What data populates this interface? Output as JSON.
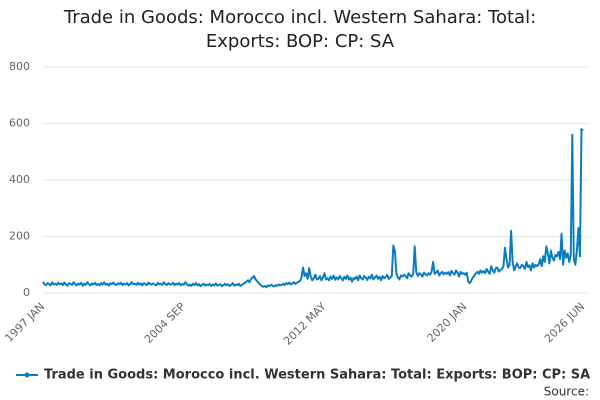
{
  "chart_data": {
    "type": "line",
    "title": "Trade in Goods: Morocco incl. Western Sahara: Total: Exports: BOP: CP: SA",
    "source_label": "Source:",
    "categories": [
      "1997 JAN",
      null,
      null,
      null,
      null,
      null,
      null,
      null,
      null,
      null,
      null,
      null,
      null,
      null,
      null,
      null,
      null,
      null,
      null,
      null,
      null,
      null,
      null,
      null,
      null,
      null,
      null,
      null,
      null,
      null,
      null,
      null,
      null,
      null,
      null,
      null,
      null,
      null,
      null,
      null,
      null,
      null,
      null,
      null,
      null,
      null,
      null,
      null,
      null,
      null,
      null,
      null,
      null,
      null,
      null,
      null,
      null,
      null,
      null,
      null,
      null,
      null,
      null,
      null,
      null,
      null,
      null,
      null,
      null,
      null,
      null,
      null,
      null,
      null,
      null,
      null,
      null,
      null,
      null,
      null,
      null,
      null,
      null,
      null,
      null,
      null,
      null,
      null,
      null,
      null,
      null,
      null,
      "2004 SEP",
      null,
      null,
      null,
      null,
      null,
      null,
      null,
      null,
      null,
      null,
      null,
      null,
      null,
      null,
      null,
      null,
      null,
      null,
      null,
      null,
      null,
      null,
      null,
      null,
      null,
      null,
      null,
      null,
      null,
      null,
      null,
      null,
      null,
      null,
      null,
      null,
      null,
      null,
      null,
      null,
      null,
      null,
      null,
      null,
      null,
      null,
      null,
      null,
      null,
      null,
      null,
      null,
      null,
      null,
      null,
      null,
      null,
      null,
      null,
      null,
      null,
      null,
      null,
      null,
      null,
      null,
      null,
      null,
      null,
      null,
      null,
      null,
      null,
      null,
      null,
      null,
      null,
      null,
      null,
      null,
      null,
      null,
      null,
      null,
      null,
      null,
      null,
      null,
      null,
      null,
      null,
      "2012 MAY",
      null,
      null,
      null,
      null,
      null,
      null,
      null,
      null,
      null,
      null,
      null,
      null,
      null,
      null,
      null,
      null,
      null,
      null,
      null,
      null,
      null,
      null,
      null,
      null,
      null,
      null,
      null,
      null,
      null,
      null,
      null,
      null,
      null,
      null,
      null,
      null,
      null,
      null,
      null,
      null,
      null,
      null,
      null,
      null,
      null,
      null,
      null,
      null,
      null,
      null,
      null,
      null,
      null,
      null,
      null,
      null,
      null,
      null,
      null,
      null,
      null,
      null,
      null,
      null,
      null,
      null,
      null,
      null,
      null,
      null,
      null,
      null,
      null,
      null,
      null,
      null,
      null,
      null,
      null,
      null,
      null,
      null,
      null,
      null,
      null,
      null,
      null,
      null,
      null,
      null,
      null,
      "2020 JAN",
      null,
      null,
      null,
      null,
      null,
      null,
      null,
      null,
      null,
      null,
      null,
      null,
      null,
      null,
      null,
      null,
      null,
      null,
      null,
      null,
      null,
      null,
      null,
      null,
      null,
      null,
      null,
      null,
      null,
      null,
      null,
      null,
      null,
      null,
      null,
      null,
      null,
      null,
      null,
      null,
      null,
      null,
      null,
      null,
      null,
      null,
      null,
      null,
      null,
      null,
      null,
      null,
      null,
      null,
      null,
      null,
      null,
      null,
      null,
      null,
      null,
      null,
      null,
      null,
      null,
      null,
      null,
      null,
      null,
      null,
      null,
      null,
      null,
      null,
      null,
      null,
      "2026 JUN"
    ],
    "series": [
      {
        "name": "Trade in Goods: Morocco incl. Western Sahara: Total: Exports: BOP: CP: SA",
        "color": "#0b7dbf",
        "values": [
          40,
          30,
          28,
          35,
          32,
          27,
          38,
          30,
          33,
          29,
          36,
          31,
          34,
          28,
          37,
          30,
          26,
          35,
          32,
          29,
          38,
          31,
          27,
          33,
          30,
          36,
          25,
          33,
          29,
          38,
          31,
          27,
          34,
          30,
          36,
          28,
          32,
          27,
          35,
          30,
          38,
          29,
          33,
          26,
          34,
          31,
          37,
          30,
          29,
          34,
          31,
          36,
          28,
          33,
          30,
          35,
          27,
          32,
          38,
          31,
          33,
          29,
          36,
          30,
          34,
          27,
          35,
          31,
          28,
          37,
          32,
          30,
          34,
          30,
          27,
          36,
          31,
          33,
          29,
          38,
          32,
          28,
          35,
          30,
          31,
          36,
          28,
          33,
          30,
          35,
          27,
          32,
          29,
          38,
          31,
          26,
          30,
          25,
          33,
          28,
          35,
          27,
          31,
          24,
          29,
          33,
          26,
          30,
          28,
          32,
          25,
          30,
          27,
          34,
          26,
          29,
          31,
          24,
          28,
          33,
          27,
          31,
          25,
          29,
          35,
          26,
          30,
          28,
          33,
          25,
          29,
          32,
          36,
          40,
          45,
          38,
          50,
          55,
          60,
          48,
          42,
          35,
          30,
          25,
          22,
          25,
          20,
          27,
          24,
          29,
          26,
          23,
          28,
          25,
          30,
          27,
          29,
          33,
          28,
          35,
          31,
          37,
          30,
          34,
          38,
          32,
          36,
          40,
          42,
          55,
          90,
          60,
          70,
          50,
          88,
          58,
          45,
          52,
          65,
          48,
          50,
          60,
          45,
          55,
          70,
          48,
          52,
          45,
          58,
          50,
          62,
          47,
          55,
          48,
          60,
          52,
          45,
          58,
          50,
          62,
          47,
          55,
          40,
          53,
          50,
          58,
          45,
          62,
          52,
          48,
          60,
          55,
          46,
          58,
          52,
          65,
          48,
          55,
          62,
          50,
          58,
          45,
          60,
          52,
          57,
          64,
          50,
          55,
          60,
          168,
          150,
          70,
          55,
          48,
          62,
          58,
          65,
          60,
          52,
          70,
          62,
          58,
          68,
          165,
          75,
          60,
          70,
          65,
          58,
          72,
          66,
          62,
          70,
          65,
          75,
          110,
          68,
          72,
          80,
          62,
          70,
          75,
          66,
          72,
          68,
          74,
          62,
          78,
          70,
          65,
          80,
          72,
          58,
          75,
          68,
          70,
          65,
          72,
          40,
          35,
          45,
          55,
          62,
          70,
          75,
          68,
          80,
          72,
          78,
          70,
          85,
          75,
          68,
          95,
          80,
          72,
          88,
          90,
          76,
          82,
          85,
          95,
          160,
          120,
          90,
          100,
          220,
          110,
          80,
          95,
          105,
          90,
          88,
          100,
          95,
          85,
          110,
          92,
          98,
          80,
          105,
          90,
          100,
          95,
          100,
          120,
          95,
          130,
          110,
          165,
          140,
          105,
          150,
          125,
          115,
          135,
          130,
          145,
          120,
          210,
          100,
          150,
          125,
          140,
          110,
          135,
          560,
          120,
          100,
          150,
          230,
          130,
          580,
          575
        ]
      }
    ],
    "ylim": [
      0,
      800
    ],
    "yticks": [
      0,
      200,
      400,
      600,
      800
    ],
    "grid": true
  }
}
